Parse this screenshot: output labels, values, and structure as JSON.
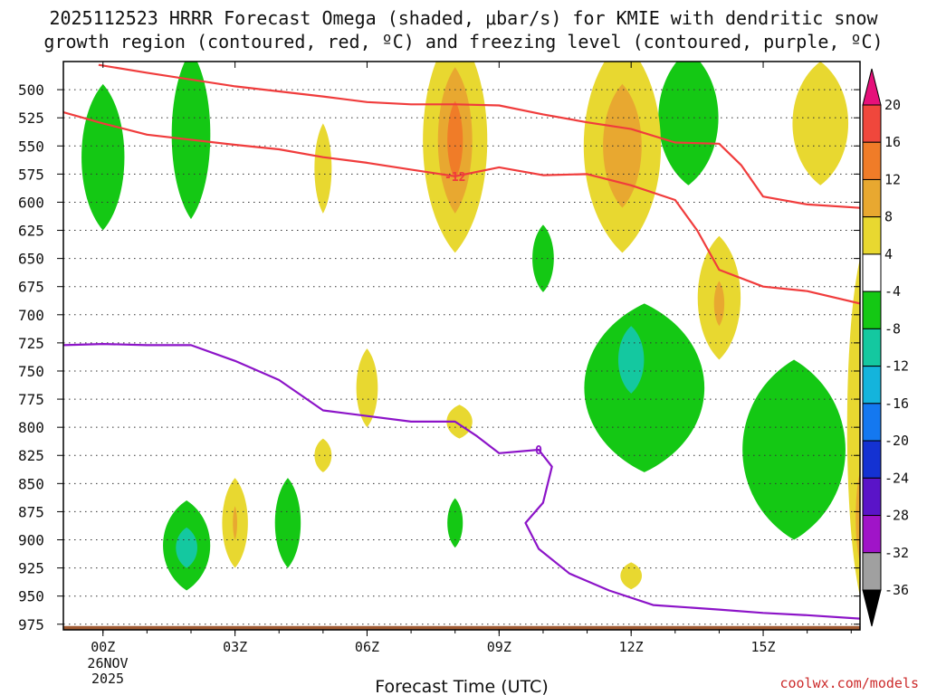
{
  "chart_data": {
    "type": "time-height contour",
    "title_line1": "2025112523 HRRR Forecast Omega (shaded, μbar/s) for KMIE with dendritic snow",
    "title_line2": "growth region (contoured, red, ºC) and freezing level (contoured, purple, ºC)",
    "xlabel": "Forecast Time (UTC)",
    "credit": "coolwx.com/models",
    "x_range_hours": [
      -0.9,
      17.2
    ],
    "y_range_hPa": [
      475,
      980
    ],
    "y_ticks": [
      500,
      525,
      550,
      575,
      600,
      625,
      650,
      675,
      700,
      725,
      750,
      775,
      800,
      825,
      850,
      875,
      900,
      925,
      950,
      975
    ],
    "x_ticks": [
      {
        "hour": 0,
        "label": "00Z"
      },
      {
        "hour": 3,
        "label": "03Z"
      },
      {
        "hour": 6,
        "label": "06Z"
      },
      {
        "hour": 9,
        "label": "09Z"
      },
      {
        "hour": 12,
        "label": "12Z"
      },
      {
        "hour": 15,
        "label": "15Z"
      }
    ],
    "date_label_day": "26NOV",
    "date_label_year": "2025",
    "colorbar": {
      "ticks": [
        "20",
        "16",
        "12",
        "8",
        "4",
        "-4",
        "-8",
        "-12",
        "-16",
        "-20",
        "-24",
        "-28",
        "-32",
        "-36"
      ],
      "bins": [
        {
          "label": ">20",
          "color": "#e6107a"
        },
        {
          "label": "16 to 20",
          "color": "#f0473c"
        },
        {
          "label": "12 to 16",
          "color": "#f07c28"
        },
        {
          "label": "8 to 12",
          "color": "#e8a830"
        },
        {
          "label": "4 to 8",
          "color": "#e8d830"
        },
        {
          "label": "-4 to 4",
          "color": "#ffffff"
        },
        {
          "label": "-8 to -4",
          "color": "#14c814"
        },
        {
          "label": "-12 to -8",
          "color": "#14c8a0"
        },
        {
          "label": "-16 to -12",
          "color": "#14b4dc"
        },
        {
          "label": "-20 to -16",
          "color": "#1478f0"
        },
        {
          "label": "-24 to -20",
          "color": "#1432d2"
        },
        {
          "label": "-28 to -24",
          "color": "#5a14c8"
        },
        {
          "label": "-32 to -28",
          "color": "#a014c8"
        },
        {
          "label": "-36 to -32",
          "color": "#a0a0a0"
        },
        {
          "label": "<-36",
          "color": "#000000"
        }
      ]
    },
    "contours": [
      {
        "name": "dendritic-upper (-12C / -18C bound)",
        "color": "#f03c3c",
        "points": [
          [
            -0.1,
            478
          ],
          [
            1,
            485
          ],
          [
            3,
            497
          ],
          [
            5,
            506
          ],
          [
            6,
            511
          ],
          [
            7,
            513
          ],
          [
            8,
            513
          ],
          [
            9,
            514
          ],
          [
            10,
            522
          ],
          [
            11,
            529
          ],
          [
            12,
            535
          ],
          [
            13,
            547
          ],
          [
            14,
            548
          ],
          [
            14.5,
            567
          ],
          [
            15,
            595
          ],
          [
            16,
            602
          ],
          [
            17.2,
            605
          ]
        ]
      },
      {
        "name": "dendritic-lower (-12C)",
        "color": "#f03c3c",
        "label": "-12",
        "label_at": [
          8,
          577
        ],
        "points": [
          [
            -0.9,
            520
          ],
          [
            0,
            530
          ],
          [
            1,
            540
          ],
          [
            3,
            549
          ],
          [
            4,
            553
          ],
          [
            5,
            560
          ],
          [
            6,
            565
          ],
          [
            7,
            571
          ],
          [
            8,
            577
          ],
          [
            9,
            569
          ],
          [
            10,
            576
          ],
          [
            11,
            575
          ],
          [
            12,
            585
          ],
          [
            13,
            598
          ],
          [
            13.5,
            625
          ],
          [
            14,
            660
          ],
          [
            15,
            675
          ],
          [
            16,
            679
          ],
          [
            17.2,
            690
          ]
        ]
      },
      {
        "name": "freezing level (0C)",
        "color": "#8c14c8",
        "label": "0",
        "label_at": [
          9.9,
          820
        ],
        "points": [
          [
            -0.9,
            727
          ],
          [
            0,
            726
          ],
          [
            1,
            727
          ],
          [
            2,
            727
          ],
          [
            3,
            741
          ],
          [
            4,
            758
          ],
          [
            5,
            785
          ],
          [
            6,
            790
          ],
          [
            7,
            795
          ],
          [
            8,
            795
          ],
          [
            8.5,
            808
          ],
          [
            9,
            823
          ],
          [
            9.9,
            820
          ],
          [
            10.2,
            835
          ],
          [
            10,
            867
          ],
          [
            9.6,
            885
          ],
          [
            9.9,
            908
          ],
          [
            10.6,
            930
          ],
          [
            11.5,
            945
          ],
          [
            12.5,
            958
          ],
          [
            14,
            962
          ],
          [
            15,
            965
          ],
          [
            16,
            967
          ],
          [
            17.2,
            970
          ]
        ]
      }
    ],
    "shaded_regions": [
      {
        "bin": "-8 to -4",
        "center": [
          0,
          560
        ],
        "half_width_hours": 0.5,
        "half_height_hPa": 65
      },
      {
        "bin": "-8 to -4",
        "center": [
          2.0,
          540
        ],
        "half_width_hours": 0.45,
        "half_height_hPa": 75
      },
      {
        "bin": "-8 to -4",
        "center": [
          1.9,
          905
        ],
        "half_width_hours": 0.55,
        "half_height_hPa": 40
      },
      {
        "bin": "-12 to -8",
        "center": [
          1.9,
          907
        ],
        "half_width_hours": 0.25,
        "half_height_hPa": 18
      },
      {
        "bin": "-8 to -4",
        "center": [
          4.2,
          885
        ],
        "half_width_hours": 0.3,
        "half_height_hPa": 40
      },
      {
        "bin": "-8 to -4",
        "center": [
          8.0,
          885
        ],
        "half_width_hours": 0.18,
        "half_height_hPa": 22
      },
      {
        "bin": "-8 to -4",
        "center": [
          10.0,
          650
        ],
        "half_width_hours": 0.25,
        "half_height_hPa": 30
      },
      {
        "bin": "-8 to -4",
        "center": [
          13.3,
          525
        ],
        "half_width_hours": 0.7,
        "half_height_hPa": 60
      },
      {
        "bin": "-8 to -4",
        "center": [
          12.3,
          765
        ],
        "half_width_hours": 1.4,
        "half_height_hPa": 75
      },
      {
        "bin": "-8 to -4",
        "center": [
          15.7,
          820
        ],
        "half_width_hours": 1.2,
        "half_height_hPa": 80
      },
      {
        "bin": "-12 to -8",
        "center": [
          12.0,
          740
        ],
        "half_width_hours": 0.3,
        "half_height_hPa": 30
      },
      {
        "bin": "4 to 8",
        "center": [
          8.0,
          545
        ],
        "half_width_hours": 0.75,
        "half_height_hPa": 100
      },
      {
        "bin": "8 to 12",
        "center": [
          8.0,
          545
        ],
        "half_width_hours": 0.4,
        "half_height_hPa": 65
      },
      {
        "bin": "12 to 16",
        "center": [
          8.0,
          545
        ],
        "half_width_hours": 0.18,
        "half_height_hPa": 35
      },
      {
        "bin": "4 to 8",
        "center": [
          11.8,
          550
        ],
        "half_width_hours": 0.9,
        "half_height_hPa": 95
      },
      {
        "bin": "8 to 12",
        "center": [
          11.8,
          550
        ],
        "half_width_hours": 0.45,
        "half_height_hPa": 55
      },
      {
        "bin": "4 to 8",
        "center": [
          5.0,
          570
        ],
        "half_width_hours": 0.2,
        "half_height_hPa": 40
      },
      {
        "bin": "4 to 8",
        "center": [
          5.0,
          825
        ],
        "half_width_hours": 0.2,
        "half_height_hPa": 15
      },
      {
        "bin": "4 to 8",
        "center": [
          6.0,
          765
        ],
        "half_width_hours": 0.25,
        "half_height_hPa": 35
      },
      {
        "bin": "4 to 8",
        "center": [
          8.1,
          795
        ],
        "half_width_hours": 0.3,
        "half_height_hPa": 15
      },
      {
        "bin": "4 to 8",
        "center": [
          3.0,
          885
        ],
        "half_width_hours": 0.3,
        "half_height_hPa": 40
      },
      {
        "bin": "8 to 12",
        "center": [
          3.0,
          885
        ],
        "half_width_hours": 0.05,
        "half_height_hPa": 15
      },
      {
        "bin": "4 to 8",
        "center": [
          14.0,
          685
        ],
        "half_width_hours": 0.5,
        "half_height_hPa": 55
      },
      {
        "bin": "8 to 12",
        "center": [
          14.0,
          690
        ],
        "half_width_hours": 0.12,
        "half_height_hPa": 20
      },
      {
        "bin": "4 to 8",
        "center": [
          16.3,
          530
        ],
        "half_width_hours": 0.65,
        "half_height_hPa": 55
      },
      {
        "bin": "4 to 8",
        "center": [
          12.0,
          932
        ],
        "half_width_hours": 0.25,
        "half_height_hPa": 12
      },
      {
        "bin": "4 to 8",
        "center": [
          17.2,
          800
        ],
        "half_width_hours": 0.3,
        "half_height_hPa": 150
      },
      {
        "bin": "8 to 12",
        "center": [
          17.2,
          880
        ],
        "half_width_hours": 0.1,
        "half_height_hPa": 40
      }
    ],
    "terrain": {
      "color": "#a05a32",
      "top_hPa": 975
    }
  }
}
